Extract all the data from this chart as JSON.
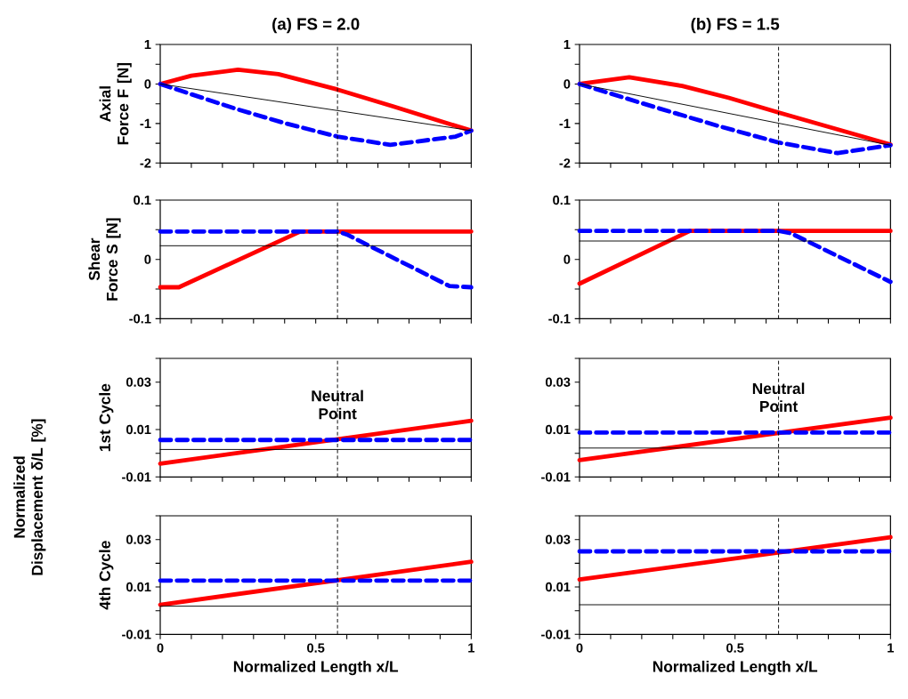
{
  "chart_data": [
    {
      "type": "line",
      "title": "(a) FS = 2.0",
      "ylabel": "Axial Force F [N]",
      "xlim": [
        0,
        1
      ],
      "ylim": [
        -2,
        1
      ],
      "tick_labels": "y",
      "xticks": [
        0,
        {
          "value": 0.1,
          "label": null
        },
        {
          "value": 0.2,
          "label": null
        },
        {
          "value": 0.3,
          "label": null
        },
        {
          "value": 0.4,
          "label": null
        },
        0.5,
        {
          "value": 0.6,
          "label": null
        },
        {
          "value": 0.7,
          "label": null
        },
        {
          "value": 0.8,
          "label": null
        },
        {
          "value": 0.9,
          "label": null
        },
        1
      ],
      "yticks": [
        -2,
        {
          "value": -1.5,
          "label": null
        },
        -1,
        {
          "value": -0.5,
          "label": null
        },
        0,
        {
          "value": 0.5,
          "label": null
        },
        1
      ],
      "series": [
        {
          "color": "#ff0000",
          "line_style": "solid",
          "x": [
            0,
            0.1,
            0.25,
            0.38,
            0.57,
            0.75,
            1
          ],
          "values": [
            0,
            0.21,
            0.36,
            0.25,
            -0.14,
            -0.57,
            -1.18
          ]
        },
        {
          "color": "#0000ff",
          "line_style": "dashed",
          "x": [
            0,
            0.24,
            0.4,
            0.57,
            0.74,
            0.95,
            1
          ],
          "values": [
            0,
            -0.62,
            -0.99,
            -1.33,
            -1.54,
            -1.33,
            -1.18
          ]
        },
        {
          "color": "#000000",
          "line_style": "solid",
          "x": [
            0,
            1
          ],
          "values": [
            0,
            -1.18
          ]
        }
      ],
      "ref_lines": [
        {
          "axis": "x",
          "value": 0.57,
          "color": "#000000",
          "line_style": "dashed"
        }
      ]
    },
    {
      "type": "line",
      "title": "(b) FS = 1.5",
      "xlim": [
        0,
        1
      ],
      "ylim": [
        -2,
        1
      ],
      "tick_labels": "y",
      "xticks": [
        0,
        {
          "value": 0.1,
          "label": null
        },
        {
          "value": 0.2,
          "label": null
        },
        {
          "value": 0.3,
          "label": null
        },
        {
          "value": 0.4,
          "label": null
        },
        0.5,
        {
          "value": 0.6,
          "label": null
        },
        {
          "value": 0.7,
          "label": null
        },
        {
          "value": 0.8,
          "label": null
        },
        {
          "value": 0.9,
          "label": null
        },
        1
      ],
      "yticks": [
        -2,
        {
          "value": -1.5,
          "label": null
        },
        -1,
        {
          "value": -0.5,
          "label": null
        },
        0,
        {
          "value": 0.5,
          "label": null
        },
        1
      ],
      "series": [
        {
          "color": "#ff0000",
          "line_style": "solid",
          "x": [
            0,
            0.16,
            0.33,
            0.48,
            0.64,
            1
          ],
          "values": [
            0,
            0.17,
            -0.05,
            -0.35,
            -0.72,
            -1.53
          ]
        },
        {
          "color": "#0000ff",
          "line_style": "dashed",
          "x": [
            0,
            0.24,
            0.45,
            0.64,
            0.83,
            1
          ],
          "values": [
            0,
            -0.58,
            -1.07,
            -1.48,
            -1.75,
            -1.55
          ]
        },
        {
          "color": "#000000",
          "line_style": "solid",
          "x": [
            0,
            1
          ],
          "values": [
            0,
            -1.55
          ]
        }
      ],
      "ref_lines": [
        {
          "axis": "x",
          "value": 0.64,
          "color": "#000000",
          "line_style": "dashed"
        }
      ]
    },
    {
      "type": "line",
      "ylabel": "Shear Force S [N]",
      "xlim": [
        0,
        1
      ],
      "ylim": [
        -0.1,
        0.1
      ],
      "tick_labels": "y",
      "xticks": [
        0,
        {
          "value": 0.1,
          "label": null
        },
        {
          "value": 0.2,
          "label": null
        },
        {
          "value": 0.3,
          "label": null
        },
        {
          "value": 0.4,
          "label": null
        },
        0.5,
        {
          "value": 0.6,
          "label": null
        },
        {
          "value": 0.7,
          "label": null
        },
        {
          "value": 0.8,
          "label": null
        },
        {
          "value": 0.9,
          "label": null
        },
        1
      ],
      "yticks": [
        -0.1,
        {
          "value": -0.05,
          "label": null
        },
        0,
        {
          "value": 0.05,
          "label": null
        },
        0.1
      ],
      "series": [
        {
          "color": "#ff0000",
          "line_style": "solid",
          "x": [
            0,
            0.06,
            0.45,
            1
          ],
          "values": [
            -0.047,
            -0.047,
            0.047,
            0.047
          ]
        },
        {
          "color": "#0000ff",
          "line_style": "dashed",
          "x": [
            0,
            0.57,
            0.6,
            0.93,
            1
          ],
          "values": [
            0.047,
            0.047,
            0.042,
            -0.045,
            -0.047
          ]
        },
        {
          "color": "#000000",
          "line_style": "solid",
          "x": [
            0,
            1
          ],
          "values": [
            0.023,
            0.023
          ]
        }
      ],
      "ref_lines": [
        {
          "axis": "x",
          "value": 0.57,
          "color": "#000000",
          "line_style": "dashed"
        }
      ]
    },
    {
      "type": "line",
      "xlim": [
        0,
        1
      ],
      "ylim": [
        -0.1,
        0.1
      ],
      "tick_labels": "y",
      "xticks": [
        0,
        {
          "value": 0.1,
          "label": null
        },
        {
          "value": 0.2,
          "label": null
        },
        {
          "value": 0.3,
          "label": null
        },
        {
          "value": 0.4,
          "label": null
        },
        0.5,
        {
          "value": 0.6,
          "label": null
        },
        {
          "value": 0.7,
          "label": null
        },
        {
          "value": 0.8,
          "label": null
        },
        {
          "value": 0.9,
          "label": null
        },
        1
      ],
      "yticks": [
        -0.1,
        {
          "value": -0.05,
          "label": null
        },
        0,
        {
          "value": 0.05,
          "label": null
        },
        0.1
      ],
      "series": [
        {
          "color": "#ff0000",
          "line_style": "solid",
          "x": [
            0,
            0.355,
            1
          ],
          "values": [
            -0.041,
            0.048,
            0.048
          ]
        },
        {
          "color": "#0000ff",
          "line_style": "dashed",
          "x": [
            0,
            0.64,
            0.68,
            1
          ],
          "values": [
            0.048,
            0.048,
            0.044,
            -0.038
          ]
        },
        {
          "color": "#000000",
          "line_style": "solid",
          "x": [
            0,
            1
          ],
          "values": [
            0.031,
            0.031
          ]
        }
      ],
      "ref_lines": [
        {
          "axis": "x",
          "value": 0.64,
          "color": "#000000",
          "line_style": "dashed"
        }
      ]
    },
    {
      "type": "line",
      "ylabel": "1st Cycle",
      "xlim": [
        0,
        1
      ],
      "ylim": [
        -0.01,
        0.04
      ],
      "tick_labels": "y",
      "xticks": [
        0,
        {
          "value": 0.1,
          "label": null
        },
        {
          "value": 0.2,
          "label": null
        },
        {
          "value": 0.3,
          "label": null
        },
        {
          "value": 0.4,
          "label": null
        },
        0.5,
        {
          "value": 0.6,
          "label": null
        },
        {
          "value": 0.7,
          "label": null
        },
        {
          "value": 0.8,
          "label": null
        },
        {
          "value": 0.9,
          "label": null
        },
        1
      ],
      "yticks": [
        -0.01,
        {
          "value": 0,
          "label": null
        },
        0.01,
        {
          "value": 0.02,
          "label": null
        },
        0.03,
        {
          "value": 0.04,
          "label": null
        }
      ],
      "series": [
        {
          "color": "#ff0000",
          "line_style": "solid",
          "x": [
            0,
            1
          ],
          "values": [
            -0.0044,
            0.0137
          ]
        },
        {
          "color": "#0000ff",
          "line_style": "dashed",
          "x": [
            0,
            1
          ],
          "values": [
            0.0056,
            0.0056
          ]
        },
        {
          "color": "#000000",
          "line_style": "solid",
          "x": [
            0,
            1
          ],
          "values": [
            0.0016,
            0.0016
          ]
        }
      ],
      "ref_lines": [
        {
          "axis": "x",
          "value": 0.57,
          "color": "#000000",
          "line_style": "dashed"
        }
      ],
      "annotations": [
        {
          "text": "Neutral Point",
          "x": 0.57,
          "y": 0.0056
        },
        "Normalized Displacement δ/L [%]"
      ]
    },
    {
      "type": "line",
      "xlim": [
        0,
        1
      ],
      "ylim": [
        -0.01,
        0.04
      ],
      "tick_labels": "y",
      "xticks": [
        0,
        {
          "value": 0.1,
          "label": null
        },
        {
          "value": 0.2,
          "label": null
        },
        {
          "value": 0.3,
          "label": null
        },
        {
          "value": 0.4,
          "label": null
        },
        0.5,
        {
          "value": 0.6,
          "label": null
        },
        {
          "value": 0.7,
          "label": null
        },
        {
          "value": 0.8,
          "label": null
        },
        {
          "value": 0.9,
          "label": null
        },
        1
      ],
      "yticks": [
        -0.01,
        {
          "value": 0,
          "label": null
        },
        0.01,
        {
          "value": 0.02,
          "label": null
        },
        0.03,
        {
          "value": 0.04,
          "label": null
        }
      ],
      "series": [
        {
          "color": "#ff0000",
          "line_style": "solid",
          "x": [
            0,
            1
          ],
          "values": [
            -0.0029,
            0.015
          ]
        },
        {
          "color": "#0000ff",
          "line_style": "dashed",
          "x": [
            0,
            1
          ],
          "values": [
            0.0087,
            0.0087
          ]
        },
        {
          "color": "#000000",
          "line_style": "solid",
          "x": [
            0,
            1
          ],
          "values": [
            0.0022,
            0.0022
          ]
        }
      ],
      "ref_lines": [
        {
          "axis": "x",
          "value": 0.64,
          "color": "#000000",
          "line_style": "dashed"
        }
      ],
      "annotations": [
        {
          "text": "Neutral Point",
          "x": 0.64,
          "y": 0.0087
        }
      ]
    },
    {
      "type": "line",
      "ylabel": "4th Cycle",
      "xlabel": "Normalized Length x/L",
      "xlim": [
        0,
        1
      ],
      "ylim": [
        -0.01,
        0.04
      ],
      "xticks": [
        0,
        {
          "value": 0.1,
          "label": null
        },
        {
          "value": 0.2,
          "label": null
        },
        {
          "value": 0.3,
          "label": null
        },
        {
          "value": 0.4,
          "label": null
        },
        0.5,
        {
          "value": 0.6,
          "label": null
        },
        {
          "value": 0.7,
          "label": null
        },
        {
          "value": 0.8,
          "label": null
        },
        {
          "value": 0.9,
          "label": null
        },
        1
      ],
      "yticks": [
        -0.01,
        {
          "value": 0,
          "label": null
        },
        0.01,
        {
          "value": 0.02,
          "label": null
        },
        0.03,
        {
          "value": 0.04,
          "label": null
        }
      ],
      "series": [
        {
          "color": "#ff0000",
          "line_style": "solid",
          "x": [
            0,
            1
          ],
          "values": [
            0.0025,
            0.0206
          ]
        },
        {
          "color": "#0000ff",
          "line_style": "dashed",
          "x": [
            0,
            1
          ],
          "values": [
            0.0127,
            0.0127
          ]
        },
        {
          "color": "#000000",
          "line_style": "solid",
          "x": [
            0,
            1
          ],
          "values": [
            0.0019,
            0.0019
          ]
        }
      ],
      "ref_lines": [
        {
          "axis": "x",
          "value": 0.57,
          "color": "#000000",
          "line_style": "dashed"
        }
      ]
    },
    {
      "type": "line",
      "xlabel": "Normalized Length x/L",
      "xlim": [
        0,
        1
      ],
      "ylim": [
        -0.01,
        0.04
      ],
      "xticks": [
        0,
        {
          "value": 0.1,
          "label": null
        },
        {
          "value": 0.2,
          "label": null
        },
        {
          "value": 0.3,
          "label": null
        },
        {
          "value": 0.4,
          "label": null
        },
        0.5,
        {
          "value": 0.6,
          "label": null
        },
        {
          "value": 0.7,
          "label": null
        },
        {
          "value": 0.8,
          "label": null
        },
        {
          "value": 0.9,
          "label": null
        },
        1
      ],
      "yticks": [
        -0.01,
        {
          "value": 0,
          "label": null
        },
        0.01,
        {
          "value": 0.02,
          "label": null
        },
        0.03,
        {
          "value": 0.04,
          "label": null
        }
      ],
      "series": [
        {
          "color": "#ff0000",
          "line_style": "solid",
          "x": [
            0,
            1
          ],
          "values": [
            0.0131,
            0.031
          ]
        },
        {
          "color": "#0000ff",
          "line_style": "dashed",
          "x": [
            0,
            1
          ],
          "values": [
            0.025,
            0.025
          ]
        },
        {
          "color": "#000000",
          "line_style": "solid",
          "x": [
            0,
            1
          ],
          "values": [
            0.0025,
            0.0025
          ]
        }
      ],
      "ref_lines": [
        {
          "axis": "x",
          "value": 0.64,
          "color": "#000000",
          "line_style": "dashed"
        }
      ]
    }
  ]
}
